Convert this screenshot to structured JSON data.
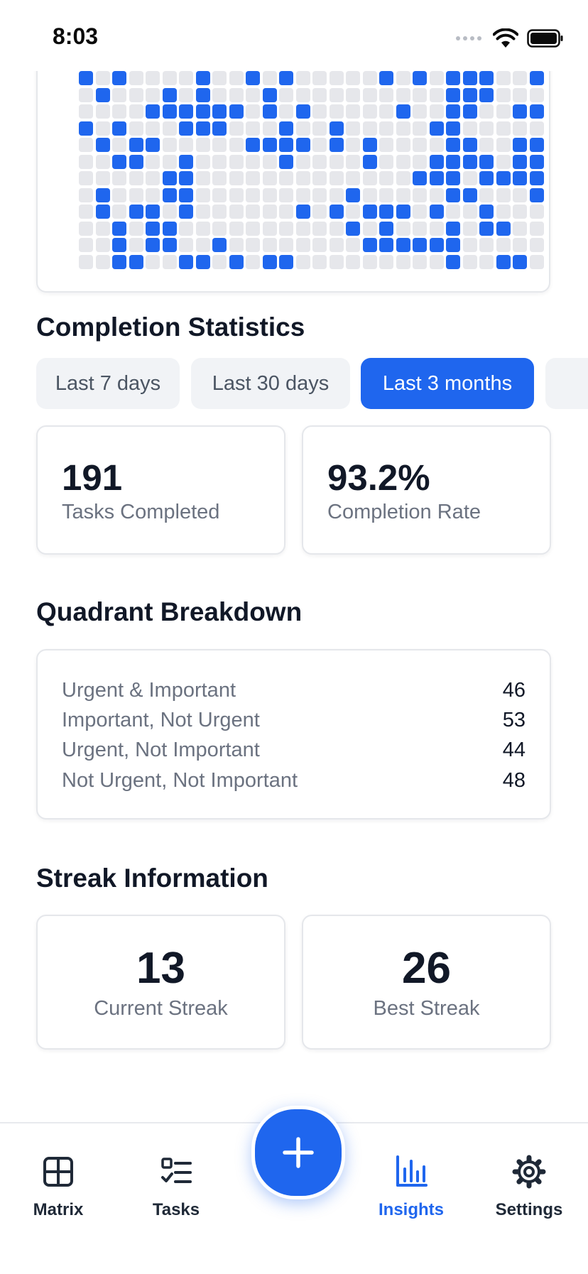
{
  "status_bar": {
    "time": "8:03"
  },
  "heatmap": {
    "rows": [
      "1010000100101000001010111001",
      "0100010100010000000000111000",
      "0000111111010100000100110011",
      "1010001110001001000001100000",
      "0101100000111101010000110011",
      "0011001000001000010001111011",
      "0000011000000000000011101111",
      "0100011000000000100000110001",
      "0101101000000101011101001000",
      "0010110000000000101000101100",
      "0010110010000000011111100000",
      "0011001101011000000000100110"
    ]
  },
  "completion": {
    "title": "Completion Statistics",
    "ranges": [
      "Last 7 days",
      "Last 30 days",
      "Last 3 months"
    ],
    "active_range": "Last 3 months",
    "tasks_completed": {
      "value": "191",
      "label": "Tasks Completed"
    },
    "completion_rate": {
      "value": "93.2%",
      "label": "Completion Rate"
    }
  },
  "quadrant": {
    "title": "Quadrant Breakdown",
    "items": [
      {
        "label": "Urgent & Important",
        "value": "46"
      },
      {
        "label": "Important, Not Urgent",
        "value": "53"
      },
      {
        "label": "Urgent, Not Important",
        "value": "44"
      },
      {
        "label": "Not Urgent, Not Important",
        "value": "48"
      }
    ]
  },
  "streak": {
    "title": "Streak Information",
    "current": {
      "value": "13",
      "label": "Current Streak"
    },
    "best": {
      "value": "26",
      "label": "Best Streak"
    }
  },
  "tab_bar": {
    "items": [
      {
        "label": "Matrix",
        "icon": "grid-icon"
      },
      {
        "label": "Tasks",
        "icon": "checklist-icon"
      },
      {
        "label": "Insights",
        "icon": "bar-chart-icon"
      },
      {
        "label": "Settings",
        "icon": "gear-icon"
      }
    ],
    "active": "Insights",
    "fab_icon": "plus-icon"
  },
  "colors": {
    "accent": "#1f66ee",
    "cell_empty": "#e6e7eb",
    "text_primary": "#111827",
    "text_secondary": "#6b7280"
  }
}
